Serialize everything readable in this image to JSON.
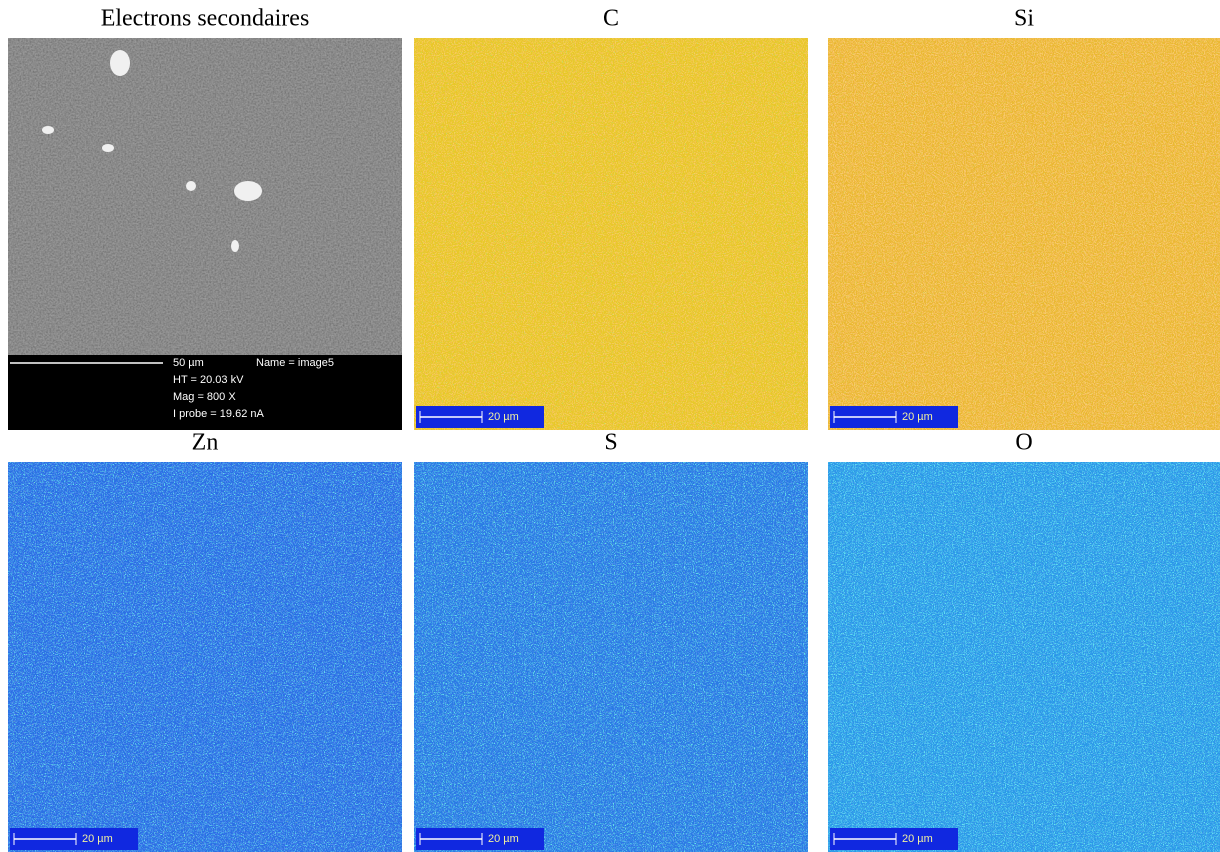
{
  "panels": [
    {
      "title": "Electrons secondaires",
      "scale_bar": "50 µm",
      "info": [
        "Name = image5",
        "HT = 20.03 kV",
        "Mag = 800 X",
        "I probe = 19.62 nA"
      ]
    },
    {
      "title": "C",
      "scale_bar": "20 µm"
    },
    {
      "title": "Si",
      "scale_bar": "20 µm"
    },
    {
      "title": "Zn",
      "scale_bar": "20 µm"
    },
    {
      "title": "S",
      "scale_bar": "20 µm"
    },
    {
      "title": "O",
      "scale_bar": "20 µm"
    }
  ]
}
